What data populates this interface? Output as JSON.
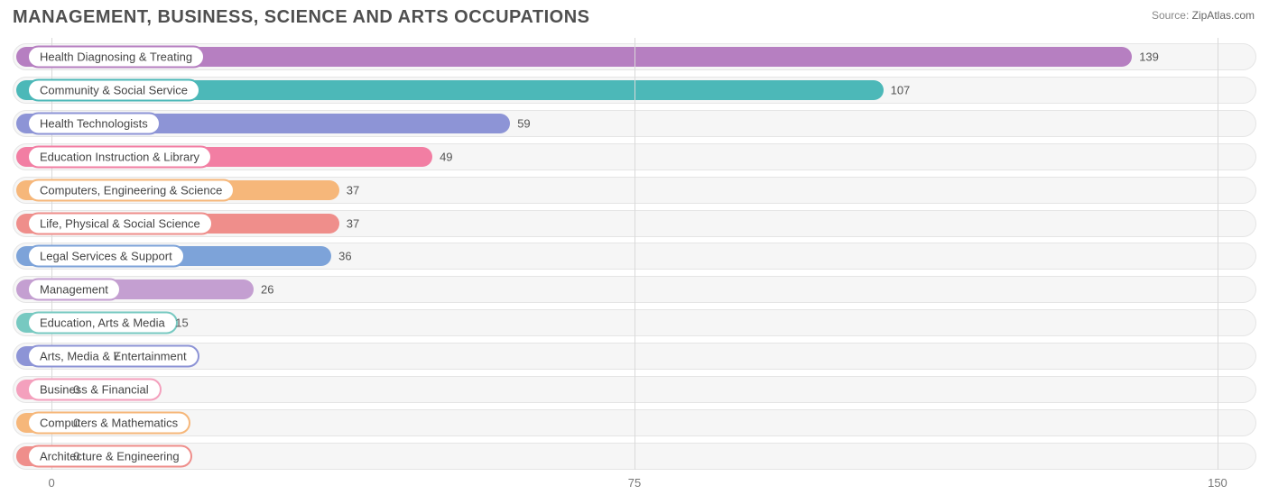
{
  "title": "MANAGEMENT, BUSINESS, SCIENCE AND ARTS OCCUPATIONS",
  "source_label": "Source:",
  "source_value": "ZipAtlas.com",
  "chart": {
    "type": "bar-horizontal",
    "xmin": -5,
    "xmax": 155,
    "xticks": [
      0,
      75,
      150
    ],
    "background_color": "#ffffff",
    "track_color": "#f6f6f6",
    "track_border": "#e5e5e5",
    "grid_color": "#d9d9d9",
    "label_fontsize": 13,
    "title_fontsize": 20,
    "title_color": "#4f4f4f",
    "bars": [
      {
        "label": "Health Diagnosing & Treating",
        "value": 139,
        "color": "#b67fc1",
        "pill_border": "#b67fc1"
      },
      {
        "label": "Community & Social Service",
        "value": 107,
        "color": "#4cb8b8",
        "pill_border": "#4cb8b8"
      },
      {
        "label": "Health Technologists",
        "value": 59,
        "color": "#8d94d6",
        "pill_border": "#8d94d6"
      },
      {
        "label": "Education Instruction & Library",
        "value": 49,
        "color": "#f27ea3",
        "pill_border": "#f27ea3"
      },
      {
        "label": "Computers, Engineering & Science",
        "value": 37,
        "color": "#f6b77a",
        "pill_border": "#f6b77a"
      },
      {
        "label": "Life, Physical & Social Science",
        "value": 37,
        "color": "#ef8e8b",
        "pill_border": "#ef8e8b"
      },
      {
        "label": "Legal Services & Support",
        "value": 36,
        "color": "#7da3d9",
        "pill_border": "#7da3d9"
      },
      {
        "label": "Management",
        "value": 26,
        "color": "#c49fd1",
        "pill_border": "#c49fd1"
      },
      {
        "label": "Education, Arts & Media",
        "value": 15,
        "color": "#77c9c1",
        "pill_border": "#77c9c1"
      },
      {
        "label": "Arts, Media & Entertainment",
        "value": 7,
        "color": "#8d94d6",
        "pill_border": "#8d94d6"
      },
      {
        "label": "Business & Financial",
        "value": 0,
        "color": "#f4a0bd",
        "pill_border": "#f4a0bd"
      },
      {
        "label": "Computers & Mathematics",
        "value": 0,
        "color": "#f6b77a",
        "pill_border": "#f6b77a"
      },
      {
        "label": "Architecture & Engineering",
        "value": 0,
        "color": "#ef8e8b",
        "pill_border": "#ef8e8b"
      }
    ]
  }
}
